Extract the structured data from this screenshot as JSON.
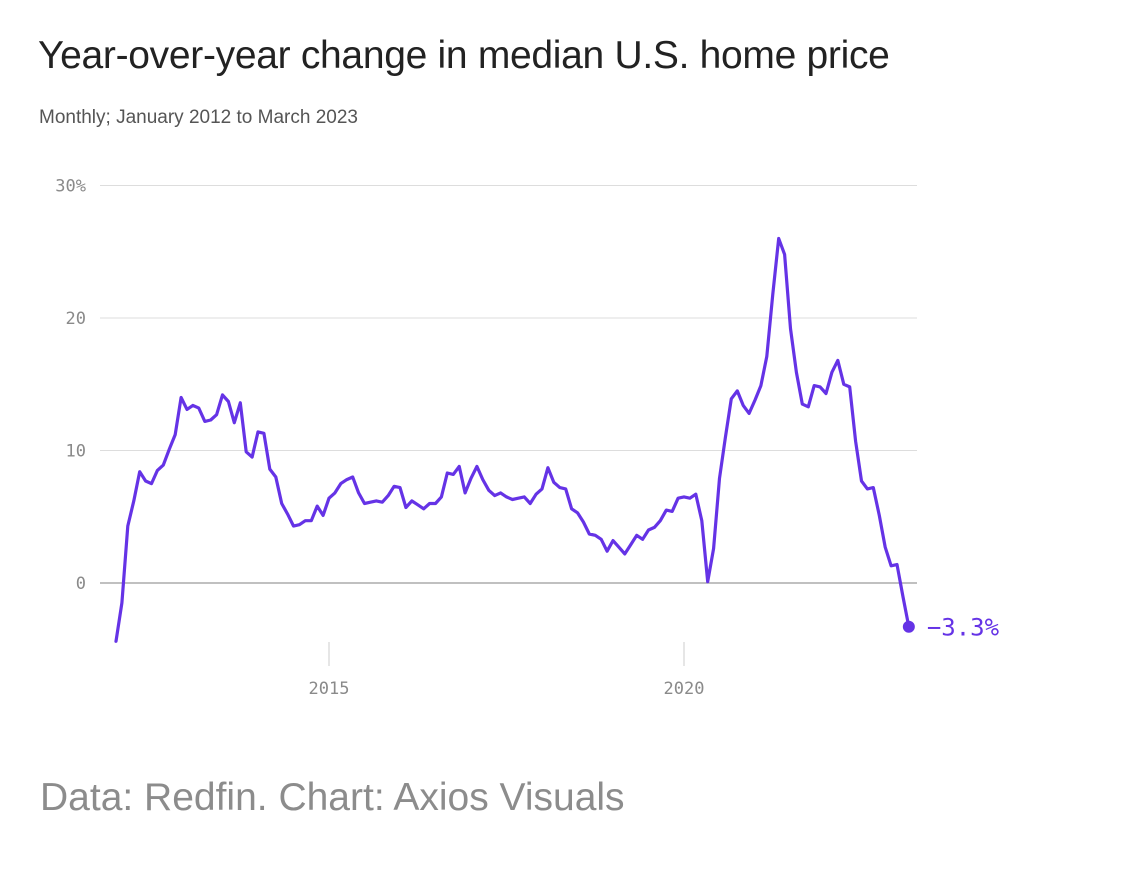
{
  "chart_data": {
    "type": "line",
    "title": "Year-over-year change in median U.S. home price",
    "subtitle": "Monthly; January 2012 to March 2023",
    "source": "Data: Redfin. Chart: Axios Visuals",
    "xlabel": "",
    "ylabel": "",
    "ylim": [
      -5,
      30
    ],
    "y_ticks": [
      0,
      10,
      20,
      30
    ],
    "y_tick_labels": [
      "0",
      "10",
      "20",
      "30%"
    ],
    "x_ticks": [
      "2015",
      "2020"
    ],
    "x_range": [
      "2012-01",
      "2023-03"
    ],
    "grid": true,
    "line_color": "#6533e6",
    "end_label": "−3.3%",
    "series": [
      {
        "x": [
          "2012-01",
          "2012-02",
          "2012-03",
          "2012-04",
          "2012-05",
          "2012-06",
          "2012-07",
          "2012-08",
          "2012-09",
          "2012-10",
          "2012-11",
          "2012-12",
          "2013-01",
          "2013-02",
          "2013-03",
          "2013-04",
          "2013-05",
          "2013-06",
          "2013-07",
          "2013-08",
          "2013-09",
          "2013-10",
          "2013-11",
          "2013-12",
          "2014-01",
          "2014-02",
          "2014-03",
          "2014-04",
          "2014-05",
          "2014-06",
          "2014-07",
          "2014-08",
          "2014-09",
          "2014-10",
          "2014-11",
          "2014-12",
          "2015-01",
          "2015-02",
          "2015-03",
          "2015-04",
          "2015-05",
          "2015-06",
          "2015-07",
          "2015-08",
          "2015-09",
          "2015-10",
          "2015-11",
          "2015-12",
          "2016-01",
          "2016-02",
          "2016-03",
          "2016-04",
          "2016-05",
          "2016-06",
          "2016-07",
          "2016-08",
          "2016-09",
          "2016-10",
          "2016-11",
          "2016-12",
          "2017-01",
          "2017-02",
          "2017-03",
          "2017-04",
          "2017-05",
          "2017-06",
          "2017-07",
          "2017-08",
          "2017-09",
          "2017-10",
          "2017-11",
          "2017-12",
          "2018-01",
          "2018-02",
          "2018-03",
          "2018-04",
          "2018-05",
          "2018-06",
          "2018-07",
          "2018-08",
          "2018-09",
          "2018-10",
          "2018-11",
          "2018-12",
          "2019-01",
          "2019-02",
          "2019-03",
          "2019-04",
          "2019-05",
          "2019-06",
          "2019-07",
          "2019-08",
          "2019-09",
          "2019-10",
          "2019-11",
          "2019-12",
          "2020-01",
          "2020-02",
          "2020-03",
          "2020-04",
          "2020-05",
          "2020-06",
          "2020-07",
          "2020-08",
          "2020-09",
          "2020-10",
          "2020-11",
          "2020-12",
          "2021-01",
          "2021-02",
          "2021-03",
          "2021-04",
          "2021-05",
          "2021-06",
          "2021-07",
          "2021-08",
          "2021-09",
          "2021-10",
          "2021-11",
          "2021-12",
          "2022-01",
          "2022-02",
          "2022-03",
          "2022-04",
          "2022-05",
          "2022-06",
          "2022-07",
          "2022-08",
          "2022-09",
          "2022-10",
          "2022-11",
          "2022-12",
          "2023-01",
          "2023-02",
          "2023-03"
        ],
        "y": [
          -4.4,
          -1.5,
          4.3,
          6.2,
          8.4,
          7.7,
          7.5,
          8.5,
          8.9,
          10.1,
          11.2,
          14.0,
          13.1,
          13.4,
          13.2,
          12.2,
          12.3,
          12.7,
          14.2,
          13.7,
          12.1,
          13.6,
          9.9,
          9.5,
          11.4,
          11.3,
          8.6,
          8.0,
          6.0,
          5.2,
          4.3,
          4.4,
          4.7,
          4.7,
          5.8,
          5.1,
          6.4,
          6.8,
          7.5,
          7.8,
          8.0,
          6.8,
          6.0,
          6.1,
          6.2,
          6.1,
          6.6,
          7.3,
          7.2,
          5.7,
          6.2,
          5.9,
          5.6,
          6.0,
          6.0,
          6.5,
          8.3,
          8.2,
          8.8,
          6.8,
          7.9,
          8.8,
          7.8,
          7.0,
          6.6,
          6.8,
          6.5,
          6.3,
          6.4,
          6.5,
          6.0,
          6.7,
          7.1,
          8.7,
          7.6,
          7.2,
          7.1,
          5.6,
          5.3,
          4.6,
          3.7,
          3.6,
          3.3,
          2.4,
          3.2,
          2.7,
          2.2,
          2.9,
          3.6,
          3.3,
          4.0,
          4.2,
          4.7,
          5.5,
          5.4,
          6.4,
          6.5,
          6.4,
          6.7,
          4.7,
          0.1,
          2.6,
          7.9,
          11.0,
          13.9,
          14.5,
          13.4,
          12.8,
          13.8,
          14.9,
          17.1,
          21.8,
          26.0,
          24.8,
          19.2,
          15.9,
          13.5,
          13.3,
          14.9,
          14.8,
          14.3,
          15.9,
          16.8,
          15.0,
          14.8,
          10.7,
          7.7,
          7.1,
          7.2,
          5.1,
          2.7,
          1.3,
          1.4,
          -1.0,
          -3.3
        ]
      }
    ]
  }
}
